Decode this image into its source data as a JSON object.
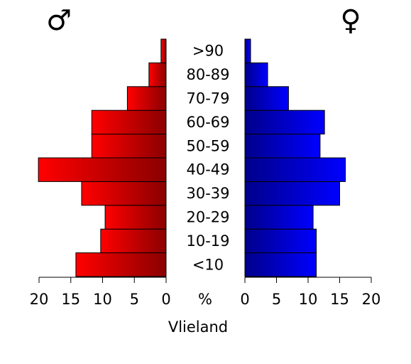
{
  "chart_data": {
    "type": "bar",
    "title": "Vlieland",
    "male_symbol": "♂",
    "female_symbol": "♀",
    "unit_label": "%",
    "categories": [
      "<10",
      "10-19",
      "20-29",
      "30-39",
      "40-49",
      "50-59",
      "60-69",
      "70-79",
      "80-89",
      ">90"
    ],
    "series": [
      {
        "name": "♂",
        "values": [
          14.2,
          10.3,
          9.6,
          13.3,
          20.1,
          11.7,
          11.7,
          6.1,
          2.7,
          0.8
        ],
        "color": "#ff0000"
      },
      {
        "name": "♀",
        "values": [
          11.3,
          11.3,
          10.8,
          15.0,
          15.9,
          11.9,
          12.6,
          6.9,
          3.6,
          0.9
        ],
        "color": "#0000ff"
      }
    ],
    "xlim": [
      0,
      20
    ],
    "ticks": [
      0,
      5,
      10,
      15,
      20
    ],
    "tick_labels": [
      "0",
      "5",
      "10",
      "15",
      "20"
    ],
    "grid": false,
    "legend": "none"
  }
}
